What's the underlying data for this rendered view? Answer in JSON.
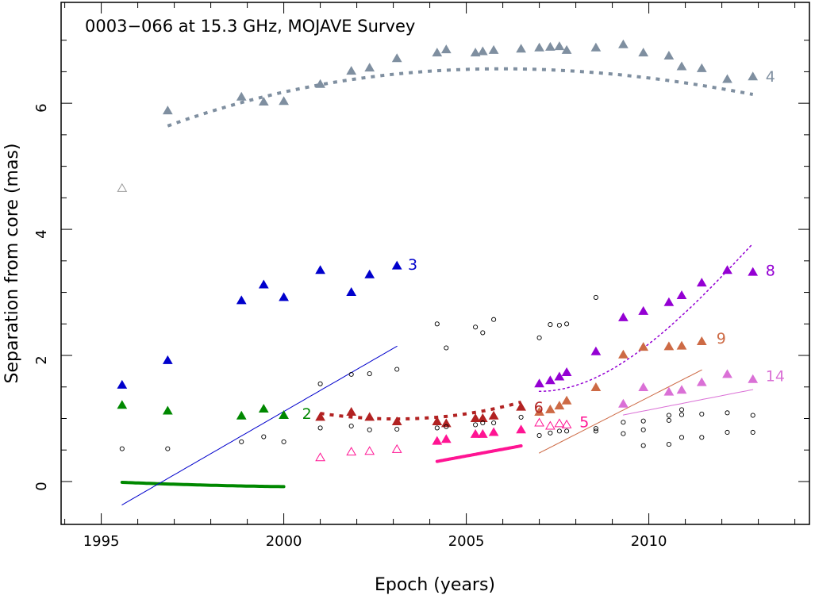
{
  "chart_data": {
    "type": "scatter",
    "title": "0003−066 at 15.3 GHz, MOJAVE Survey",
    "xlabel": "Epoch (years)",
    "ylabel": "Separation from core (mas)",
    "xlim": [
      1993.9,
      2014.4
    ],
    "ylim": [
      -0.68,
      7.6
    ],
    "x_ticks": [
      "1995",
      "2000",
      "2005",
      "2010"
    ],
    "y_ticks": [
      "0",
      "2",
      "4",
      "6"
    ],
    "colors": {
      "c2": "#008800",
      "c3": "#0000cc",
      "c4": "#7f8fa0",
      "c5": "#ff1493",
      "c6": "#b22222",
      "c8": "#9400d3",
      "c9": "#cd6a45",
      "c14": "#da70d6",
      "unassigned": "#000000",
      "outlier": "#999999"
    },
    "series": [
      {
        "name": "2",
        "color": "#008800",
        "points": [
          [
            1995.57,
            1.21
          ],
          [
            1996.82,
            1.12
          ],
          [
            1998.84,
            1.04
          ],
          [
            1999.45,
            1.15
          ],
          [
            2000.0,
            1.05
          ]
        ],
        "fit": {
          "kind": "poly",
          "coef": [
            -0.013,
            -0.0235,
            0.00183
          ],
          "x0": 1995.57,
          "range": [
            1995.57,
            2000.0
          ],
          "style": "thick"
        },
        "label_x": 2000.5,
        "label_y": 1.08
      },
      {
        "name": "3",
        "color": "#0000cc",
        "points": [
          [
            1995.57,
            1.53
          ],
          [
            1996.82,
            1.92
          ],
          [
            1998.84,
            2.87
          ],
          [
            1999.45,
            3.12
          ],
          [
            2000.0,
            2.92
          ],
          [
            2001.0,
            3.35
          ],
          [
            2001.85,
            3.0
          ],
          [
            2002.35,
            3.28
          ],
          [
            2003.1,
            3.42
          ]
        ],
        "fit": {
          "kind": "poly",
          "coef": [
            -667.29,
            0.3342
          ],
          "range": [
            1995.57,
            2003.1
          ],
          "style": "thin"
        },
        "label_x": 2003.4,
        "label_y": 3.45
      },
      {
        "name": "4",
        "color": "#7f8fa0",
        "points": [
          [
            1996.82,
            5.88
          ],
          [
            1998.84,
            6.1
          ],
          [
            1999.45,
            6.02
          ],
          [
            2000.0,
            6.03
          ],
          [
            2001.0,
            6.3
          ],
          [
            2001.85,
            6.51
          ],
          [
            2002.35,
            6.56
          ],
          [
            2003.1,
            6.71
          ],
          [
            2004.2,
            6.8
          ],
          [
            2004.45,
            6.85
          ],
          [
            2005.25,
            6.8
          ],
          [
            2005.45,
            6.82
          ],
          [
            2005.75,
            6.84
          ],
          [
            2006.5,
            6.86
          ],
          [
            2007.0,
            6.88
          ],
          [
            2007.3,
            6.89
          ],
          [
            2007.55,
            6.9
          ],
          [
            2007.75,
            6.84
          ],
          [
            2008.55,
            6.88
          ],
          [
            2009.3,
            6.93
          ],
          [
            2009.85,
            6.8
          ],
          [
            2010.55,
            6.75
          ],
          [
            2010.9,
            6.58
          ],
          [
            2011.45,
            6.55
          ],
          [
            2012.15,
            6.38
          ],
          [
            2012.85,
            6.42
          ]
        ],
        "fit": {
          "kind": "poly",
          "coef": [
            5.64,
            0.21,
            -0.0134,
            0.00014
          ],
          "x0": 1996.82,
          "range": [
            1996.82,
            2012.85
          ],
          "style": "dotted_thick"
        },
        "label_x": 2013.2,
        "label_y": 6.43
      },
      {
        "name": "5",
        "color": "#ff1493",
        "open_points": [
          [
            2001.0,
            0.38
          ],
          [
            2001.85,
            0.47
          ],
          [
            2002.35,
            0.48
          ],
          [
            2003.1,
            0.51
          ],
          [
            2007.0,
            0.93
          ],
          [
            2007.3,
            0.88
          ],
          [
            2007.55,
            0.92
          ],
          [
            2007.75,
            0.9
          ]
        ],
        "points": [
          [
            2004.2,
            0.64
          ],
          [
            2004.45,
            0.67
          ],
          [
            2005.25,
            0.75
          ],
          [
            2005.45,
            0.75
          ],
          [
            2005.75,
            0.78
          ],
          [
            2006.5,
            0.82
          ]
        ],
        "fit": {
          "kind": "poly",
          "coef": [
            -214.13,
            0.107
          ],
          "range": [
            2004.2,
            2006.5
          ],
          "style": "thick"
        },
        "label_x": 2008.1,
        "label_y": 0.95
      },
      {
        "name": "6",
        "color": "#b22222",
        "points": [
          [
            2001.0,
            1.02
          ],
          [
            2001.85,
            1.1
          ],
          [
            2002.35,
            1.02
          ],
          [
            2003.1,
            0.95
          ],
          [
            2004.2,
            0.95
          ],
          [
            2004.45,
            0.92
          ],
          [
            2005.25,
            1.0
          ],
          [
            2005.45,
            1.0
          ],
          [
            2005.75,
            1.04
          ],
          [
            2006.5,
            1.18
          ]
        ],
        "fit": {
          "kind": "poly",
          "coef": [
            1.08,
            -0.082,
            0.0182,
            0.00048
          ],
          "x0": 2001.0,
          "range": [
            2001.0,
            2006.5
          ],
          "style": "dotted_thick"
        },
        "label_x": 2006.85,
        "label_y": 1.18
      },
      {
        "name": "8",
        "color": "#9400d3",
        "points": [
          [
            2007.0,
            1.55
          ],
          [
            2007.3,
            1.6
          ],
          [
            2007.55,
            1.66
          ],
          [
            2007.75,
            1.73
          ],
          [
            2008.55,
            2.06
          ],
          [
            2009.3,
            2.6
          ],
          [
            2009.85,
            2.7
          ],
          [
            2010.55,
            2.84
          ],
          [
            2010.9,
            2.95
          ],
          [
            2011.45,
            3.15
          ],
          [
            2012.15,
            3.35
          ],
          [
            2012.85,
            3.32
          ]
        ],
        "fit": {
          "kind": "poly",
          "coef": [
            1.43,
            0.0,
            0.0995,
            -0.0053
          ],
          "x0": 2007.0,
          "range": [
            2007.0,
            2012.85
          ],
          "style": "dotted_thin"
        },
        "label_x": 2013.2,
        "label_y": 3.35
      },
      {
        "name": "9",
        "color": "#cd6a45",
        "points": [
          [
            2007.0,
            1.1
          ],
          [
            2007.3,
            1.14
          ],
          [
            2007.55,
            1.2
          ],
          [
            2007.75,
            1.28
          ],
          [
            2008.55,
            1.49
          ],
          [
            2009.3,
            2.01
          ],
          [
            2009.85,
            2.13
          ],
          [
            2010.55,
            2.14
          ],
          [
            2010.9,
            2.15
          ],
          [
            2011.45,
            2.22
          ]
        ],
        "fit": {
          "kind": "poly",
          "coef": [
            -593.82,
            0.2961
          ],
          "range": [
            2007.0,
            2011.45
          ],
          "style": "thin"
        },
        "label_x": 2011.85,
        "label_y": 2.28
      },
      {
        "name": "14",
        "color": "#da70d6",
        "points": [
          [
            2009.3,
            1.23
          ],
          [
            2009.85,
            1.49
          ],
          [
            2010.55,
            1.42
          ],
          [
            2010.9,
            1.45
          ],
          [
            2011.45,
            1.57
          ],
          [
            2012.15,
            1.7
          ],
          [
            2012.85,
            1.62
          ]
        ],
        "fit": {
          "kind": "poly",
          "coef": [
            -227.0,
            0.1135
          ],
          "range": [
            2009.3,
            2012.85
          ],
          "style": "thin"
        },
        "label_x": 2013.2,
        "label_y": 1.68
      }
    ],
    "unassigned_points": [
      [
        1995.57,
        0.52
      ],
      [
        1996.82,
        0.52
      ],
      [
        1998.84,
        0.63
      ],
      [
        1999.45,
        0.71
      ],
      [
        2000.0,
        0.63
      ],
      [
        2001.0,
        0.85
      ],
      [
        2001.0,
        1.55
      ],
      [
        2001.85,
        0.88
      ],
      [
        2001.85,
        1.7
      ],
      [
        2002.35,
        0.82
      ],
      [
        2002.35,
        1.71
      ],
      [
        2003.1,
        0.83
      ],
      [
        2003.1,
        1.78
      ],
      [
        2004.2,
        0.85
      ],
      [
        2004.2,
        2.5
      ],
      [
        2004.45,
        0.87
      ],
      [
        2004.45,
        2.12
      ],
      [
        2005.25,
        0.9
      ],
      [
        2005.25,
        2.45
      ],
      [
        2005.45,
        0.93
      ],
      [
        2005.45,
        2.36
      ],
      [
        2005.75,
        0.93
      ],
      [
        2005.75,
        2.57
      ],
      [
        2006.5,
        1.02
      ],
      [
        2007.0,
        0.73
      ],
      [
        2007.0,
        2.28
      ],
      [
        2007.3,
        0.77
      ],
      [
        2007.3,
        2.49
      ],
      [
        2007.55,
        0.8
      ],
      [
        2007.55,
        2.48
      ],
      [
        2007.75,
        0.8
      ],
      [
        2007.75,
        2.5
      ],
      [
        2008.55,
        0.8
      ],
      [
        2008.55,
        0.84
      ],
      [
        2008.55,
        2.92
      ],
      [
        2009.3,
        0.76
      ],
      [
        2009.3,
        0.94
      ],
      [
        2009.85,
        0.57
      ],
      [
        2009.85,
        0.82
      ],
      [
        2009.85,
        0.96
      ],
      [
        2010.55,
        0.59
      ],
      [
        2010.55,
        0.97
      ],
      [
        2010.55,
        1.05
      ],
      [
        2010.9,
        0.7
      ],
      [
        2010.9,
        1.06
      ],
      [
        2010.9,
        1.14
      ],
      [
        2011.45,
        0.7
      ],
      [
        2011.45,
        1.07
      ],
      [
        2012.15,
        0.78
      ],
      [
        2012.15,
        1.09
      ],
      [
        2012.85,
        0.78
      ],
      [
        2012.85,
        1.05
      ]
    ],
    "outlier_points": [
      [
        1995.57,
        4.65
      ]
    ]
  }
}
